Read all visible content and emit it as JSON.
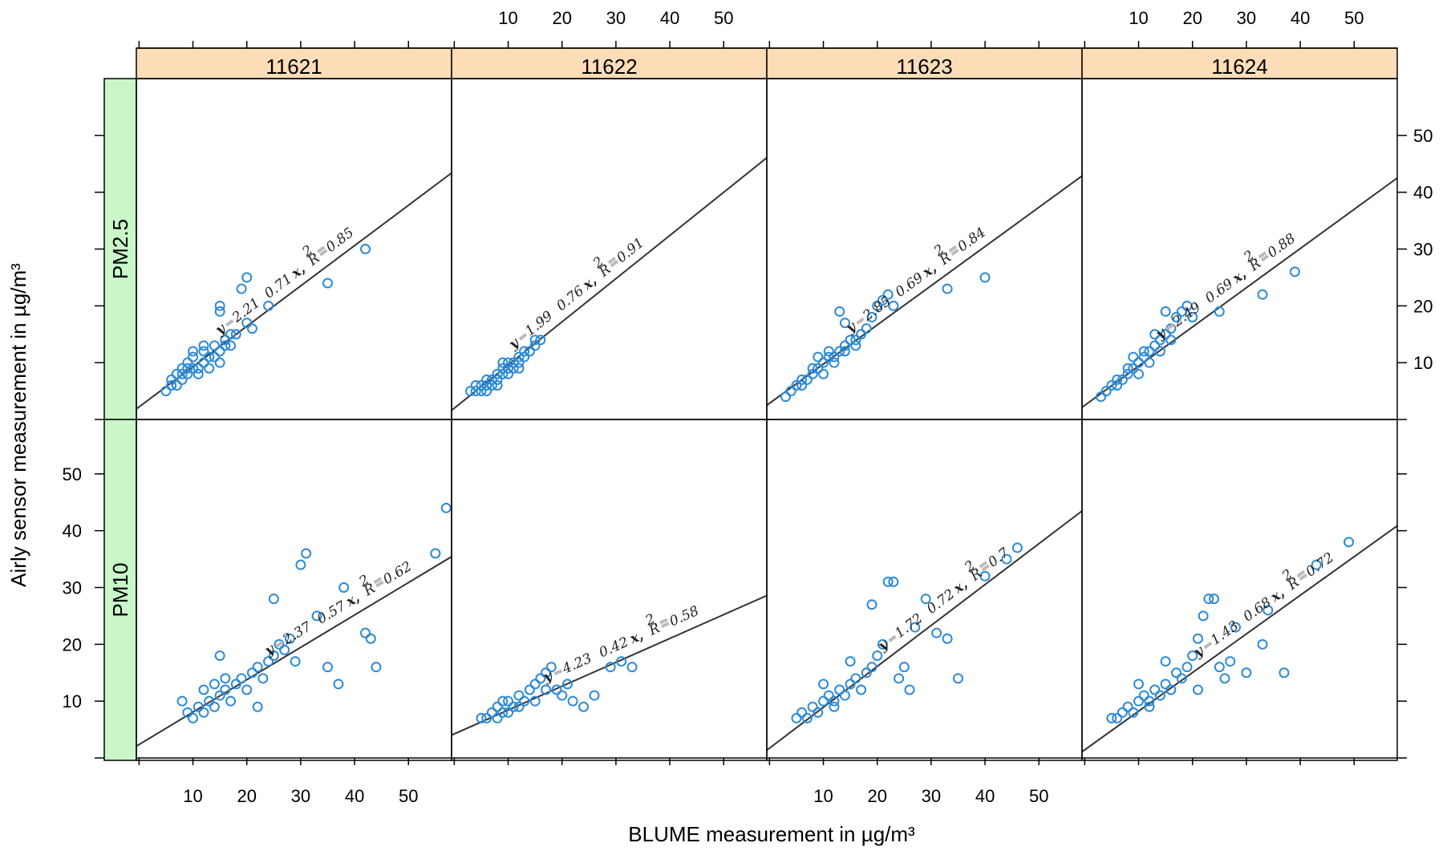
{
  "chart_data": {
    "type": "scatter",
    "layout": "lattice 4 columns x 2 rows",
    "xlabel": "BLUME measurement in µg/m³",
    "ylabel": "Airly sensor measurement  in µg/m³",
    "xticks": [
      "10",
      "20",
      "30",
      "40",
      "50"
    ],
    "yticks": [
      "10",
      "20",
      "30",
      "40",
      "50"
    ],
    "xlim": [
      -0.5,
      58
    ],
    "ylim": [
      0,
      60
    ],
    "marker": "open circle",
    "colors": {
      "points": "#2b8ad8",
      "fit_line": "#333333",
      "column_strip": "#fddcb8",
      "row_strip": "#c9f7c9",
      "frame": "#000000"
    },
    "columns": [
      "11621",
      "11622",
      "11623",
      "11624"
    ],
    "rows": [
      "PM2.5",
      "PM10"
    ],
    "panels": [
      {
        "column": "11621",
        "row": "PM2.5",
        "fit": {
          "intercept": 2.21,
          "slope": 0.71,
          "r2": 0.85
        },
        "equation": {
          "y": "y",
          "a": "2.21",
          "b": "0.71",
          "x": "x,",
          "R": "R",
          "r2": "0.85",
          "sup": "2"
        },
        "points": [
          [
            5,
            5
          ],
          [
            6,
            6
          ],
          [
            7,
            6
          ],
          [
            8,
            7
          ],
          [
            9,
            8
          ],
          [
            10,
            9
          ],
          [
            11,
            9
          ],
          [
            12,
            10
          ],
          [
            13,
            11
          ],
          [
            14,
            11
          ],
          [
            15,
            12
          ],
          [
            16,
            13
          ],
          [
            17,
            13
          ],
          [
            7,
            8
          ],
          [
            9,
            10
          ],
          [
            11,
            8
          ],
          [
            13,
            9
          ],
          [
            15,
            10
          ],
          [
            6,
            7
          ],
          [
            8,
            9
          ],
          [
            10,
            11
          ],
          [
            12,
            12
          ],
          [
            14,
            13
          ],
          [
            16,
            14
          ],
          [
            18,
            15
          ],
          [
            20,
            17
          ],
          [
            21,
            16
          ],
          [
            15,
            20
          ],
          [
            15,
            19
          ],
          [
            19,
            23
          ],
          [
            20,
            25
          ],
          [
            24,
            20
          ],
          [
            35,
            24
          ],
          [
            42,
            30
          ],
          [
            17,
            15
          ],
          [
            12,
            13
          ],
          [
            10,
            12
          ],
          [
            9,
            9
          ],
          [
            8,
            8
          ]
        ]
      },
      {
        "column": "11622",
        "row": "PM2.5",
        "fit": {
          "intercept": 1.99,
          "slope": 0.76,
          "r2": 0.91
        },
        "equation": {
          "y": "y",
          "a": "1.99",
          "b": "0.76",
          "x": "x,",
          "R": "R",
          "r2": "0.91",
          "sup": "2"
        },
        "points": [
          [
            3,
            5
          ],
          [
            4,
            5
          ],
          [
            5,
            6
          ],
          [
            5,
            5
          ],
          [
            6,
            6
          ],
          [
            6,
            7
          ],
          [
            7,
            7
          ],
          [
            7,
            6
          ],
          [
            8,
            8
          ],
          [
            8,
            7
          ],
          [
            9,
            8
          ],
          [
            9,
            9
          ],
          [
            10,
            9
          ],
          [
            10,
            10
          ],
          [
            11,
            10
          ],
          [
            11,
            9
          ],
          [
            12,
            11
          ],
          [
            12,
            10
          ],
          [
            13,
            12
          ],
          [
            14,
            12
          ],
          [
            15,
            13
          ],
          [
            15,
            14
          ],
          [
            16,
            14
          ],
          [
            4,
            6
          ],
          [
            6,
            5
          ],
          [
            8,
            6
          ],
          [
            10,
            8
          ],
          [
            12,
            9
          ],
          [
            9,
            10
          ],
          [
            13,
            11
          ]
        ]
      },
      {
        "column": "11623",
        "row": "PM2.5",
        "fit": {
          "intercept": 2.85,
          "slope": 0.69,
          "r2": 0.84
        },
        "equation": {
          "y": "y",
          "a": "2.85",
          "b": "0.69",
          "x": "x,",
          "R": "R",
          "r2": "0.84",
          "sup": "2"
        },
        "points": [
          [
            3,
            4
          ],
          [
            4,
            5
          ],
          [
            5,
            6
          ],
          [
            6,
            6
          ],
          [
            7,
            7
          ],
          [
            8,
            8
          ],
          [
            9,
            9
          ],
          [
            10,
            10
          ],
          [
            11,
            11
          ],
          [
            12,
            11
          ],
          [
            13,
            12
          ],
          [
            14,
            13
          ],
          [
            15,
            14
          ],
          [
            16,
            13
          ],
          [
            17,
            15
          ],
          [
            18,
            16
          ],
          [
            19,
            18
          ],
          [
            20,
            20
          ],
          [
            21,
            21
          ],
          [
            22,
            22
          ],
          [
            23,
            20
          ],
          [
            13,
            19
          ],
          [
            14,
            17
          ],
          [
            33,
            23
          ],
          [
            40,
            25
          ],
          [
            6,
            7
          ],
          [
            8,
            9
          ],
          [
            10,
            8
          ],
          [
            12,
            10
          ],
          [
            14,
            12
          ],
          [
            16,
            14
          ],
          [
            9,
            11
          ],
          [
            11,
            12
          ]
        ]
      },
      {
        "column": "11624",
        "row": "PM2.5",
        "fit": {
          "intercept": 2.49,
          "slope": 0.69,
          "r2": 0.88
        },
        "equation": {
          "y": "y",
          "a": "2.49",
          "b": "0.69",
          "x": "x,",
          "R": "R",
          "r2": "0.88",
          "sup": "2"
        },
        "points": [
          [
            3,
            4
          ],
          [
            4,
            5
          ],
          [
            5,
            6
          ],
          [
            6,
            6
          ],
          [
            7,
            7
          ],
          [
            8,
            8
          ],
          [
            9,
            9
          ],
          [
            10,
            10
          ],
          [
            11,
            11
          ],
          [
            12,
            12
          ],
          [
            13,
            13
          ],
          [
            14,
            14
          ],
          [
            15,
            15
          ],
          [
            16,
            16
          ],
          [
            17,
            18
          ],
          [
            18,
            19
          ],
          [
            19,
            20
          ],
          [
            20,
            18
          ],
          [
            15,
            19
          ],
          [
            13,
            15
          ],
          [
            25,
            19
          ],
          [
            33,
            22
          ],
          [
            39,
            26
          ],
          [
            6,
            7
          ],
          [
            8,
            9
          ],
          [
            10,
            8
          ],
          [
            12,
            10
          ],
          [
            14,
            12
          ],
          [
            9,
            11
          ],
          [
            11,
            12
          ],
          [
            16,
            14
          ]
        ]
      },
      {
        "column": "11621",
        "row": "PM10",
        "fit": {
          "intercept": 2.37,
          "slope": 0.57,
          "r2": 0.62
        },
        "equation": {
          "y": "y",
          "a": "2.37",
          "b": "0.57",
          "x": "x,",
          "R": "R",
          "r2": "0.62",
          "sup": "2"
        },
        "points": [
          [
            8,
            10
          ],
          [
            9,
            8
          ],
          [
            10,
            7
          ],
          [
            11,
            9
          ],
          [
            12,
            8
          ],
          [
            13,
            10
          ],
          [
            14,
            9
          ],
          [
            15,
            11
          ],
          [
            16,
            12
          ],
          [
            17,
            10
          ],
          [
            18,
            13
          ],
          [
            19,
            14
          ],
          [
            20,
            12
          ],
          [
            21,
            15
          ],
          [
            22,
            16
          ],
          [
            23,
            14
          ],
          [
            24,
            17
          ],
          [
            25,
            18
          ],
          [
            26,
            20
          ],
          [
            27,
            19
          ],
          [
            28,
            21
          ],
          [
            29,
            17
          ],
          [
            30,
            34
          ],
          [
            31,
            36
          ],
          [
            33,
            25
          ],
          [
            35,
            16
          ],
          [
            37,
            13
          ],
          [
            42,
            22
          ],
          [
            43,
            21
          ],
          [
            44,
            16
          ],
          [
            55,
            36
          ],
          [
            57,
            44
          ],
          [
            15,
            18
          ],
          [
            22,
            9
          ],
          [
            25,
            28
          ],
          [
            38,
            30
          ],
          [
            12,
            12
          ],
          [
            14,
            13
          ],
          [
            16,
            14
          ]
        ]
      },
      {
        "column": "11622",
        "row": "PM10",
        "fit": {
          "intercept": 4.23,
          "slope": 0.42,
          "r2": 0.58
        },
        "equation": {
          "y": "y",
          "a": "4.23",
          "b": "0.42",
          "x": "x,",
          "R": "R",
          "r2": "0.58",
          "sup": "2"
        },
        "points": [
          [
            5,
            7
          ],
          [
            6,
            7
          ],
          [
            7,
            8
          ],
          [
            8,
            9
          ],
          [
            9,
            8
          ],
          [
            10,
            10
          ],
          [
            11,
            9
          ],
          [
            12,
            11
          ],
          [
            13,
            10
          ],
          [
            14,
            12
          ],
          [
            15,
            13
          ],
          [
            16,
            14
          ],
          [
            17,
            15
          ],
          [
            18,
            16
          ],
          [
            19,
            12
          ],
          [
            20,
            11
          ],
          [
            21,
            13
          ],
          [
            22,
            10
          ],
          [
            24,
            9
          ],
          [
            26,
            11
          ],
          [
            29,
            16
          ],
          [
            31,
            17
          ],
          [
            33,
            16
          ],
          [
            8,
            7
          ],
          [
            9,
            10
          ],
          [
            10,
            8
          ],
          [
            12,
            9
          ],
          [
            15,
            10
          ],
          [
            17,
            12
          ]
        ]
      },
      {
        "column": "11623",
        "row": "PM10",
        "fit": {
          "intercept": 1.72,
          "slope": 0.72,
          "r2": 0.7
        },
        "equation": {
          "y": "y",
          "a": "1.72",
          "b": "0.72",
          "x": "x,",
          "R": "R",
          "r2": "0.7",
          "sup": "2"
        },
        "points": [
          [
            5,
            7
          ],
          [
            6,
            8
          ],
          [
            7,
            7
          ],
          [
            8,
            9
          ],
          [
            9,
            8
          ],
          [
            10,
            10
          ],
          [
            11,
            11
          ],
          [
            12,
            9
          ],
          [
            13,
            12
          ],
          [
            14,
            11
          ],
          [
            15,
            13
          ],
          [
            16,
            14
          ],
          [
            17,
            12
          ],
          [
            18,
            15
          ],
          [
            19,
            16
          ],
          [
            20,
            18
          ],
          [
            21,
            20
          ],
          [
            22,
            31
          ],
          [
            23,
            31
          ],
          [
            24,
            14
          ],
          [
            25,
            16
          ],
          [
            27,
            23
          ],
          [
            29,
            28
          ],
          [
            31,
            22
          ],
          [
            33,
            21
          ],
          [
            35,
            14
          ],
          [
            40,
            32
          ],
          [
            44,
            35
          ],
          [
            46,
            37
          ],
          [
            15,
            17
          ],
          [
            19,
            27
          ],
          [
            26,
            12
          ],
          [
            10,
            13
          ],
          [
            12,
            10
          ]
        ]
      },
      {
        "column": "11624",
        "row": "PM10",
        "fit": {
          "intercept": 1.43,
          "slope": 0.68,
          "r2": 0.72
        },
        "equation": {
          "y": "y",
          "a": "1.43",
          "b": "0.68",
          "x": "x,",
          "R": "R",
          "r2": "0.72",
          "sup": "2"
        },
        "points": [
          [
            5,
            7
          ],
          [
            6,
            7
          ],
          [
            7,
            8
          ],
          [
            8,
            9
          ],
          [
            9,
            8
          ],
          [
            10,
            10
          ],
          [
            11,
            11
          ],
          [
            12,
            9
          ],
          [
            13,
            12
          ],
          [
            14,
            11
          ],
          [
            15,
            13
          ],
          [
            16,
            12
          ],
          [
            17,
            15
          ],
          [
            18,
            14
          ],
          [
            19,
            16
          ],
          [
            20,
            18
          ],
          [
            21,
            21
          ],
          [
            22,
            25
          ],
          [
            23,
            28
          ],
          [
            24,
            28
          ],
          [
            25,
            16
          ],
          [
            26,
            14
          ],
          [
            27,
            17
          ],
          [
            28,
            23
          ],
          [
            30,
            15
          ],
          [
            33,
            20
          ],
          [
            34,
            26
          ],
          [
            37,
            15
          ],
          [
            43,
            34
          ],
          [
            49,
            38
          ],
          [
            15,
            17
          ],
          [
            21,
            12
          ],
          [
            10,
            13
          ],
          [
            12,
            10
          ]
        ]
      }
    ]
  }
}
